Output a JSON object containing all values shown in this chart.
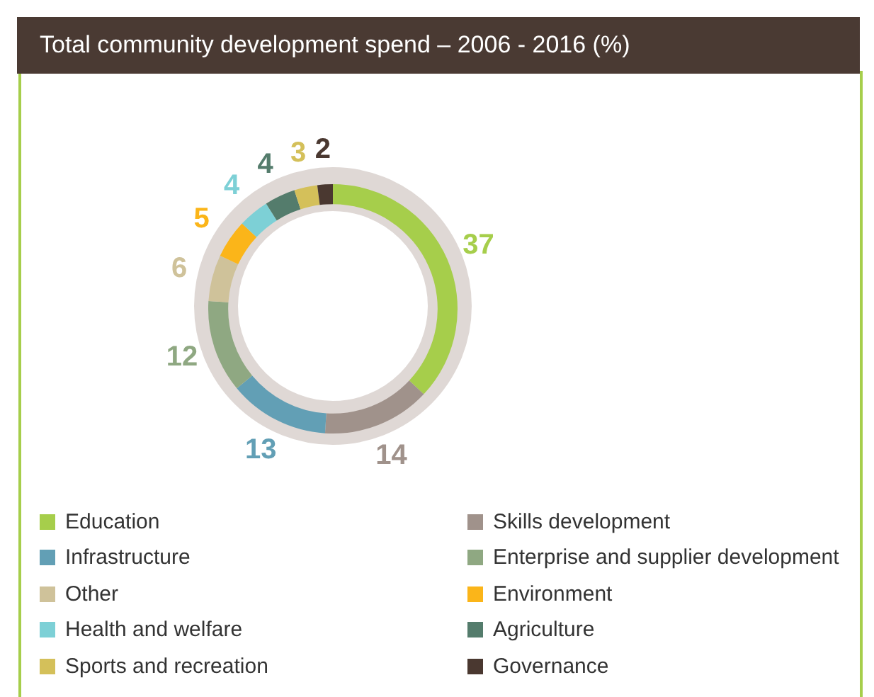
{
  "chart_data": {
    "type": "donut",
    "title": "Total community development spend – 2006 - 2016 (%)",
    "categories": [
      "Education",
      "Skills development",
      "Infrastructure",
      "Enterprise and supplier development",
      "Other",
      "Environment",
      "Health and welfare",
      "Agriculture",
      "Sports and recreation",
      "Governance"
    ],
    "values": [
      37,
      14,
      13,
      12,
      6,
      5,
      4,
      4,
      3,
      2
    ],
    "colors": [
      "#a6ce4b",
      "#a0928b",
      "#629fb5",
      "#8fa882",
      "#cfc29a",
      "#fbb519",
      "#7dd0d6",
      "#547c6c",
      "#d4c05a",
      "#4a3830"
    ],
    "data_labels": true,
    "legend": "bottom"
  }
}
